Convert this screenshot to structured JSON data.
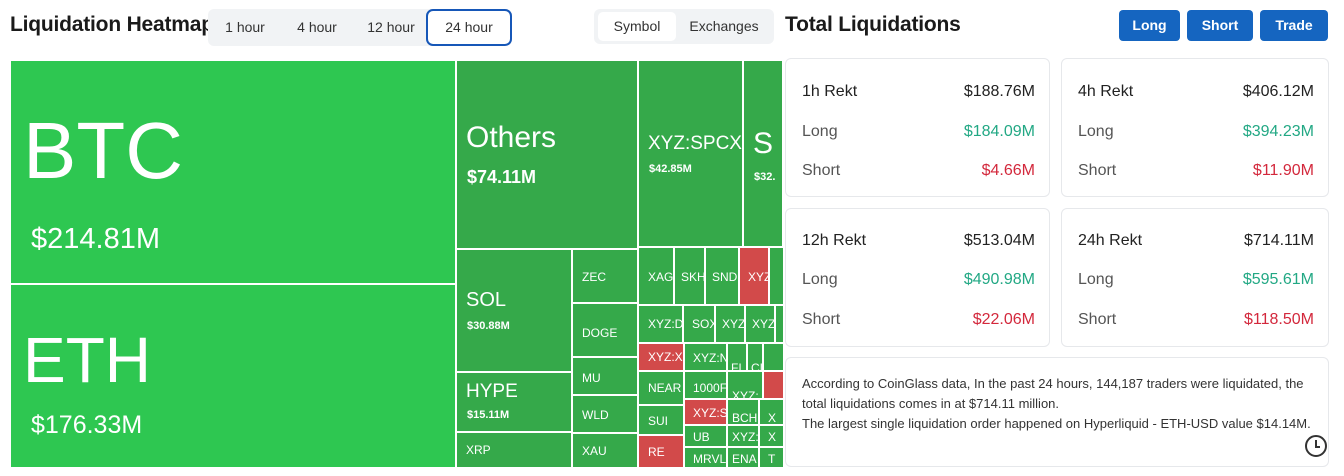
{
  "header": {
    "title": "Liquidation Heatmap",
    "timeframes": [
      "1 hour",
      "4 hour",
      "12 hour",
      "24 hour"
    ],
    "active_timeframe": "24 hour",
    "modes": [
      "Symbol",
      "Exchanges"
    ],
    "active_mode": "Symbol"
  },
  "totals_header": {
    "title": "Total Liquidations",
    "buttons": [
      "Long",
      "Short",
      "Trade"
    ]
  },
  "heatmap": {
    "btc": {
      "symbol": "BTC",
      "value": "$214.81M"
    },
    "eth": {
      "symbol": "ETH",
      "value": "$176.33M"
    },
    "others": {
      "symbol": "Others",
      "value": "$74.11M"
    },
    "spcx": {
      "symbol": "XYZ:SPCX",
      "value": "$42.85M"
    },
    "partial_s": {
      "symbol": "S",
      "value": "$32."
    },
    "sol": {
      "symbol": "SOL",
      "value": "$30.88M"
    },
    "hype": {
      "symbol": "HYPE",
      "value": "$15.11M"
    },
    "small": {
      "zec": "ZEC",
      "doge": "DOGE",
      "mu": "MU",
      "wld": "WLD",
      "xau": "XAU",
      "xrp": "XRP",
      "xag": "XAG",
      "skh": "SKH",
      "snd": "SND",
      "xyz1": "XYZ",
      "xyzd": "XYZ:D",
      "sox": "SOX",
      "xyz2": "XYZ",
      "xyz3": "XYZ",
      "xyzx": "XYZ:X",
      "xyzn": "XYZ:N",
      "fi": "FI",
      "ci": "CI",
      "near": "NEAR",
      "k1000": "1000F",
      "xyz4": "XYZ:",
      "xyz5": "XYZ:",
      "sui": "SUI",
      "xyzs": "XYZ:S",
      "bch": "BCH",
      "ub": "UB",
      "xyz6": "XYZ:",
      "re": "RE",
      "mrvl": "MRVL",
      "ena": "ENA",
      "x1": "X",
      "x2": "X",
      "x3": "X",
      "t": "T"
    }
  },
  "cards": [
    {
      "name": "1h",
      "title": "1h Rekt",
      "total": "$188.76M",
      "long_label": "Long",
      "long": "$184.09M",
      "short_label": "Short",
      "short": "$4.66M"
    },
    {
      "name": "4h",
      "title": "4h Rekt",
      "total": "$406.12M",
      "long_label": "Long",
      "long": "$394.23M",
      "short_label": "Short",
      "short": "$11.90M"
    },
    {
      "name": "12h",
      "title": "12h Rekt",
      "total": "$513.04M",
      "long_label": "Long",
      "long": "$490.98M",
      "short_label": "Short",
      "short": "$22.06M"
    },
    {
      "name": "24h",
      "title": "24h Rekt",
      "total": "$714.11M",
      "long_label": "Long",
      "long": "$595.61M",
      "short_label": "Short",
      "short": "$118.50M"
    }
  ],
  "summary": {
    "line1": "According to CoinGlass data, In the past 24 hours, 144,187 traders were liquidated, the total liquidations comes in at $714.11 million.",
    "line2": "The largest single liquidation order happened on Hyperliquid - ETH-USD value $14.14M."
  },
  "colors": {
    "accent": "#1565c0",
    "long_green": "#22a884",
    "short_red": "#d3283c",
    "heat_bright": "#2ec751",
    "heat_green": "#35a94a",
    "heat_red": "#d24a4a"
  }
}
